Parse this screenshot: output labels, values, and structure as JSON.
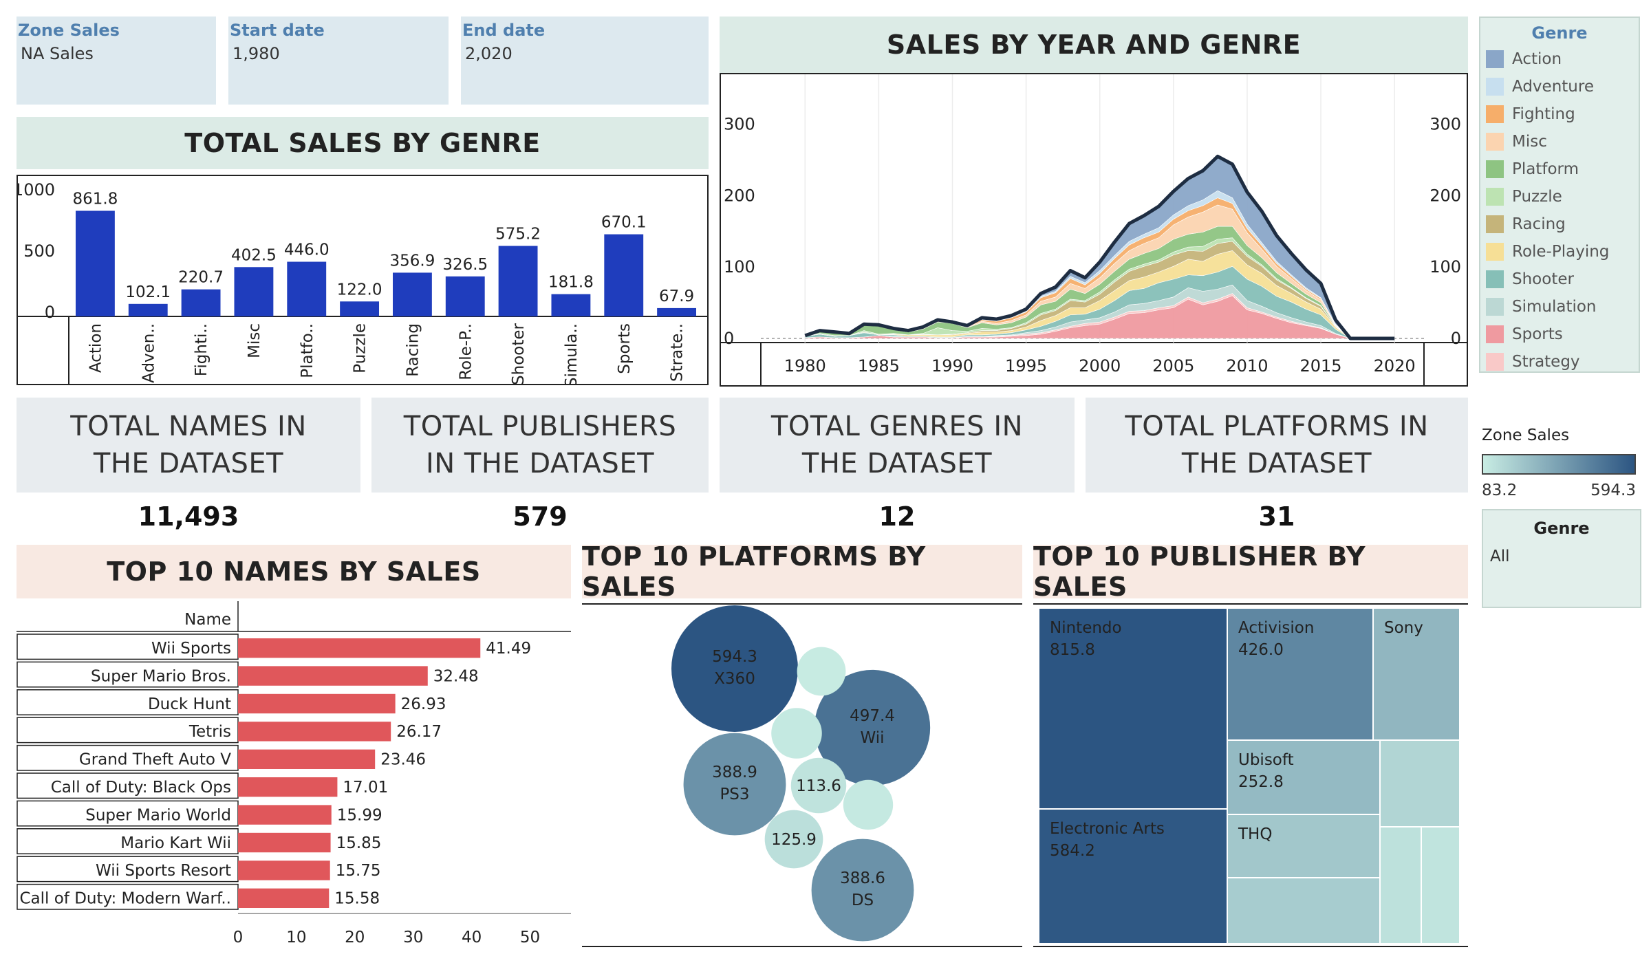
{
  "filters": [
    {
      "title": "Zone Sales",
      "value": "NA Sales"
    },
    {
      "title": "Start date",
      "value": "1,980"
    },
    {
      "title": "End date",
      "value": "2,020"
    }
  ],
  "genre_chart_title": "TOTAL SALES BY GENRE",
  "year_chart_title": "SALES BY YEAR AND GENRE",
  "kpis": [
    {
      "label": "TOTAL NAMES IN THE DATASET",
      "value": "11,493"
    },
    {
      "label": "TOTAL PUBLISHERS IN THE DATASET",
      "value": "579"
    },
    {
      "label": "TOTAL GENRES IN THE DATASET",
      "value": "12"
    },
    {
      "label": "TOTAL PLATFORMS IN THE DATASET",
      "value": "31"
    }
  ],
  "top_names_title": "TOP 10 NAMES BY SALES",
  "top_platforms_title": "TOP 10 PLATFORMS BY SALES",
  "top_publishers_title": "TOP 10 PUBLISHER BY SALES",
  "legend": {
    "title": "Genre",
    "items": [
      {
        "name": "Action",
        "color": "#8aa6c8"
      },
      {
        "name": "Adventure",
        "color": "#c7dfef"
      },
      {
        "name": "Fighting",
        "color": "#f6ae6a"
      },
      {
        "name": "Misc",
        "color": "#fbd4b0"
      },
      {
        "name": "Platform",
        "color": "#8ec482"
      },
      {
        "name": "Puzzle",
        "color": "#bde3b2"
      },
      {
        "name": "Racing",
        "color": "#c5b47a"
      },
      {
        "name": "Role-Playing",
        "color": "#f6df96"
      },
      {
        "name": "Shooter",
        "color": "#86bfb7"
      },
      {
        "name": "Simulation",
        "color": "#bcd8d4"
      },
      {
        "name": "Sports",
        "color": "#ef9aa0"
      },
      {
        "name": "Strategy",
        "color": "#f9c9c8"
      }
    ]
  },
  "zone_legend": {
    "title": "Zone Sales",
    "min_label": "83.2",
    "max_label": "594.3",
    "color_low": "#c8ece3",
    "color_high": "#2c5582"
  },
  "genre_filter": {
    "title": "Genre",
    "value": "All"
  },
  "chart_data": [
    {
      "type": "bar",
      "title": "TOTAL SALES BY GENRE",
      "categories": [
        "Action",
        "Adven..",
        "Fighti..",
        "Misc",
        "Platfo..",
        "Puzzle",
        "Racing",
        "Role-P..",
        "Shooter",
        "Simula..",
        "Sports",
        "Strate.."
      ],
      "values": [
        861.8,
        102.1,
        220.7,
        402.5,
        446.0,
        122.0,
        356.9,
        326.5,
        575.2,
        181.8,
        670.1,
        67.9
      ],
      "value_labels": [
        "861.8",
        "102.1",
        "220.7",
        "402.5",
        "446.0",
        "122.0",
        "356.9",
        "326.5",
        "575.2",
        "181.8",
        "670.1",
        "67.9"
      ],
      "yticks": [
        0,
        500,
        1000
      ],
      "ylim": [
        0,
        1100
      ],
      "color": "#1f3dbd"
    },
    {
      "type": "area",
      "title": "SALES BY YEAR AND GENRE",
      "x": [
        1980,
        1981,
        1982,
        1983,
        1984,
        1985,
        1986,
        1987,
        1988,
        1989,
        1990,
        1991,
        1992,
        1993,
        1994,
        1995,
        1996,
        1997,
        1998,
        1999,
        2000,
        2001,
        2002,
        2003,
        2004,
        2005,
        2006,
        2007,
        2008,
        2009,
        2010,
        2011,
        2012,
        2013,
        2014,
        2015,
        2016,
        2017,
        2018,
        2019,
        2020
      ],
      "xticks": [
        1980,
        1985,
        1990,
        1995,
        2000,
        2005,
        2010,
        2015,
        2020
      ],
      "yticks": [
        0,
        100,
        200,
        300
      ],
      "ylim": [
        0,
        370
      ],
      "xlim": [
        1977,
        2022
      ],
      "series": [
        {
          "name": "Sports",
          "values": [
            1,
            2,
            1,
            1,
            2,
            4,
            2,
            2,
            2,
            1,
            1,
            2,
            2,
            2,
            3,
            4,
            6,
            10,
            15,
            18,
            20,
            27,
            35,
            36,
            40,
            43,
            55,
            47,
            52,
            60,
            40,
            35,
            28,
            22,
            18,
            14,
            6,
            0,
            0,
            0,
            0
          ]
        },
        {
          "name": "Strategy",
          "values": [
            0,
            0,
            0,
            0,
            0,
            0,
            0,
            0,
            0,
            0,
            0,
            0,
            0,
            1,
            1,
            2,
            2,
            2,
            2,
            3,
            3,
            3,
            3,
            3,
            3,
            3,
            3,
            3,
            3,
            3,
            3,
            2,
            2,
            2,
            1,
            1,
            0,
            0,
            0,
            0,
            0
          ]
        },
        {
          "name": "Simulation",
          "values": [
            0,
            0,
            0,
            0,
            0,
            0,
            1,
            0,
            0,
            0,
            0,
            1,
            1,
            1,
            1,
            2,
            3,
            4,
            6,
            5,
            6,
            7,
            9,
            10,
            10,
            12,
            13,
            16,
            14,
            12,
            10,
            8,
            6,
            5,
            4,
            3,
            1,
            0,
            0,
            0,
            0
          ]
        },
        {
          "name": "Shooter",
          "values": [
            2,
            4,
            2,
            3,
            6,
            1,
            2,
            1,
            1,
            1,
            1,
            2,
            2,
            2,
            3,
            4,
            6,
            8,
            10,
            8,
            12,
            16,
            20,
            21,
            25,
            25,
            18,
            22,
            24,
            26,
            30,
            28,
            23,
            22,
            18,
            15,
            6,
            0,
            0,
            0,
            0
          ]
        },
        {
          "name": "Role-Playing",
          "values": [
            0,
            0,
            0,
            0,
            0,
            0,
            1,
            2,
            2,
            3,
            3,
            2,
            4,
            3,
            3,
            4,
            8,
            8,
            10,
            9,
            12,
            14,
            14,
            16,
            15,
            18,
            22,
            20,
            25,
            22,
            20,
            18,
            15,
            12,
            10,
            8,
            3,
            0,
            0,
            0,
            0
          ]
        },
        {
          "name": "Racing",
          "values": [
            0,
            0,
            0,
            0,
            1,
            0,
            0,
            0,
            1,
            0,
            1,
            1,
            2,
            2,
            3,
            4,
            8,
            7,
            10,
            8,
            9,
            12,
            13,
            15,
            14,
            16,
            12,
            14,
            15,
            13,
            12,
            10,
            8,
            7,
            5,
            4,
            1,
            0,
            0,
            0,
            0
          ]
        },
        {
          "name": "Puzzle",
          "values": [
            0,
            1,
            1,
            0,
            2,
            1,
            1,
            0,
            1,
            10,
            5,
            2,
            3,
            2,
            1,
            2,
            2,
            2,
            2,
            2,
            3,
            3,
            3,
            3,
            3,
            4,
            5,
            7,
            6,
            5,
            3,
            2,
            2,
            1,
            1,
            1,
            0,
            0,
            0,
            0,
            0
          ]
        },
        {
          "name": "Platform",
          "values": [
            1,
            3,
            4,
            2,
            8,
            12,
            5,
            4,
            6,
            8,
            10,
            5,
            8,
            6,
            7,
            8,
            12,
            11,
            14,
            10,
            11,
            12,
            14,
            15,
            16,
            18,
            18,
            20,
            18,
            16,
            12,
            10,
            8,
            6,
            5,
            4,
            1,
            0,
            0,
            0,
            0
          ]
        },
        {
          "name": "Misc",
          "values": [
            0,
            1,
            1,
            1,
            1,
            1,
            1,
            1,
            1,
            1,
            1,
            1,
            2,
            2,
            3,
            3,
            5,
            6,
            8,
            7,
            9,
            11,
            12,
            14,
            15,
            20,
            24,
            28,
            30,
            24,
            18,
            12,
            9,
            7,
            5,
            4,
            1,
            0,
            0,
            0,
            0
          ]
        },
        {
          "name": "Fighting",
          "values": [
            0,
            0,
            0,
            0,
            0,
            0,
            0,
            0,
            0,
            0,
            0,
            1,
            2,
            3,
            4,
            4,
            5,
            6,
            7,
            5,
            6,
            7,
            8,
            8,
            8,
            8,
            9,
            9,
            10,
            8,
            6,
            5,
            4,
            3,
            2,
            2,
            1,
            0,
            0,
            0,
            0
          ]
        },
        {
          "name": "Adventure",
          "values": [
            0,
            0,
            0,
            0,
            0,
            0,
            0,
            0,
            1,
            1,
            0,
            0,
            1,
            1,
            1,
            1,
            2,
            2,
            3,
            3,
            4,
            4,
            5,
            5,
            6,
            6,
            7,
            8,
            10,
            8,
            6,
            4,
            3,
            2,
            2,
            1,
            0,
            0,
            0,
            0,
            0
          ]
        },
        {
          "name": "Action",
          "values": [
            0,
            0,
            0,
            0,
            0,
            0,
            1,
            1,
            1,
            1,
            1,
            1,
            2,
            2,
            2,
            3,
            4,
            6,
            8,
            7,
            12,
            19,
            25,
            26,
            30,
            33,
            38,
            41,
            48,
            47,
            45,
            44,
            36,
            30,
            25,
            20,
            6,
            0,
            0,
            0,
            0
          ]
        }
      ]
    },
    {
      "type": "bar",
      "title": "TOP 10 NAMES BY SALES",
      "column_header": "Name",
      "categories": [
        "Wii Sports",
        "Super Mario Bros.",
        "Duck Hunt",
        "Tetris",
        "Grand Theft Auto V",
        "Call of Duty: Black Ops",
        "Super Mario World",
        "Mario Kart Wii",
        "Wii Sports Resort",
        "Call of Duty: Modern Warf.."
      ],
      "values": [
        41.49,
        32.48,
        26.93,
        26.17,
        23.46,
        17.01,
        15.99,
        15.85,
        15.75,
        15.58
      ],
      "value_labels": [
        "41.49",
        "32.48",
        "26.93",
        "26.17",
        "23.46",
        "17.01",
        "15.99",
        "15.85",
        "15.75",
        "15.58"
      ],
      "xticks": [
        0,
        10,
        20,
        30,
        40,
        50
      ],
      "xlim": [
        0,
        53
      ],
      "color": "#e0575b"
    },
    {
      "type": "scatter",
      "title": "TOP 10 PLATFORMS BY SALES",
      "points": [
        {
          "label": "X360",
          "value": 594.3,
          "value_label": "594.3"
        },
        {
          "label": "Wii",
          "value": 497.4,
          "value_label": "497.4"
        },
        {
          "label": "PS3",
          "value": 388.9,
          "value_label": "388.9"
        },
        {
          "label": "DS",
          "value": 388.6,
          "value_label": "388.6"
        },
        {
          "label": "",
          "value": 125.9,
          "value_label": "125.9"
        },
        {
          "label": "",
          "value": 113.6,
          "value_label": "113.6"
        },
        {
          "label": "",
          "value": 95.0,
          "value_label": ""
        },
        {
          "label": "",
          "value": 92.0,
          "value_label": ""
        },
        {
          "label": "",
          "value": 88.0,
          "value_label": ""
        }
      ]
    },
    {
      "type": "heatmap",
      "title": "TOP 10 PUBLISHER BY SALES",
      "cells": [
        {
          "label": "Nintendo",
          "value": 815.8,
          "value_label": "815.8"
        },
        {
          "label": "Electronic Arts",
          "value": 584.2,
          "value_label": "584.2"
        },
        {
          "label": "Activision",
          "value": 426.0,
          "value_label": "426.0"
        },
        {
          "label": "Sony",
          "value": 265.0,
          "value_label": ""
        },
        {
          "label": "Ubisoft",
          "value": 252.8,
          "value_label": "252.8"
        },
        {
          "label": "THQ",
          "value": 208.0,
          "value_label": ""
        },
        {
          "label": "",
          "value": 190.0,
          "value_label": ""
        },
        {
          "label": "",
          "value": 160.0,
          "value_label": ""
        },
        {
          "label": "",
          "value": 120.0,
          "value_label": ""
        },
        {
          "label": "",
          "value": 110.0,
          "value_label": ""
        }
      ]
    }
  ]
}
